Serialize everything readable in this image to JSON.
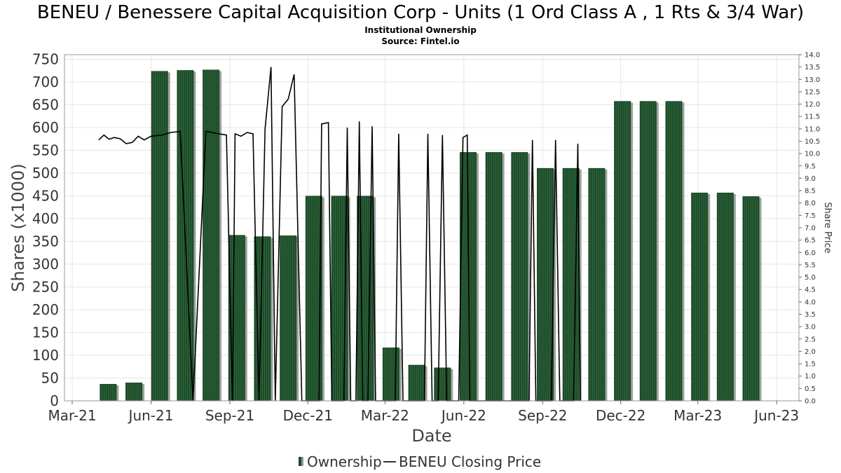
{
  "chart_data": {
    "type": "bar",
    "title": "BENEU / Benessere Capital Acquisition Corp - Units (1 Ord Class A , 1 Rts & 3/4 War)",
    "subtitle_lines": [
      "Institutional Ownership",
      "Source: Fintel.io"
    ],
    "xlabel": "Date",
    "ylabel": "Shares (x1000)",
    "y2label": "Share Price",
    "ylim": [
      0,
      760
    ],
    "y2lim": [
      0,
      14.0
    ],
    "yticks": [
      "0",
      "50",
      "100",
      "150",
      "200",
      "250",
      "300",
      "350",
      "400",
      "450",
      "500",
      "550",
      "600",
      "650",
      "700",
      "750"
    ],
    "y2ticks": [
      "0.0",
      "0.5",
      "1.0",
      "1.5",
      "2.0",
      "2.5",
      "3.0",
      "3.5",
      "4.0",
      "4.5",
      "5.0",
      "5.5",
      "6.0",
      "6.5",
      "7.0",
      "7.5",
      "8.0",
      "8.5",
      "9.0",
      "9.5",
      "10.0",
      "10.5",
      "11.0",
      "11.5",
      "12.0",
      "12.5",
      "13.0",
      "13.5",
      "14.0"
    ],
    "xticks": [
      {
        "label": "Mar-21",
        "date": "2021-03-01"
      },
      {
        "label": "Jun-21",
        "date": "2021-06-01"
      },
      {
        "label": "Sep-21",
        "date": "2021-09-01"
      },
      {
        "label": "Dec-21",
        "date": "2021-12-01"
      },
      {
        "label": "Mar-22",
        "date": "2022-03-01"
      },
      {
        "label": "Jun-22",
        "date": "2022-06-01"
      },
      {
        "label": "Sep-22",
        "date": "2022-09-01"
      },
      {
        "label": "Dec-22",
        "date": "2022-12-01"
      },
      {
        "label": "Mar-23",
        "date": "2023-03-01"
      },
      {
        "label": "Jun-23",
        "date": "2023-06-01"
      }
    ],
    "xrange": [
      "2021-02-20",
      "2023-06-27"
    ],
    "grid": true,
    "legend_position": "bottom",
    "series": [
      {
        "name": "Ownership",
        "kind": "bar",
        "color": "#1f4a2a",
        "points": [
          {
            "date": "2021-04-12",
            "value": 37
          },
          {
            "date": "2021-05-12",
            "value": 40
          },
          {
            "date": "2021-06-11",
            "value": 724
          },
          {
            "date": "2021-07-11",
            "value": 726
          },
          {
            "date": "2021-08-10",
            "value": 727
          },
          {
            "date": "2021-09-09",
            "value": 364
          },
          {
            "date": "2021-10-09",
            "value": 361
          },
          {
            "date": "2021-11-08",
            "value": 363
          },
          {
            "date": "2021-12-08",
            "value": 450
          },
          {
            "date": "2022-01-07",
            "value": 450
          },
          {
            "date": "2022-02-06",
            "value": 450
          },
          {
            "date": "2022-03-08",
            "value": 117
          },
          {
            "date": "2022-04-07",
            "value": 79
          },
          {
            "date": "2022-05-07",
            "value": 73
          },
          {
            "date": "2022-06-06",
            "value": 546
          },
          {
            "date": "2022-07-06",
            "value": 546
          },
          {
            "date": "2022-08-05",
            "value": 546
          },
          {
            "date": "2022-09-04",
            "value": 511
          },
          {
            "date": "2022-10-04",
            "value": 511
          },
          {
            "date": "2022-11-03",
            "value": 511
          },
          {
            "date": "2022-12-03",
            "value": 658
          },
          {
            "date": "2023-01-02",
            "value": 658
          },
          {
            "date": "2023-02-01",
            "value": 658
          },
          {
            "date": "2023-03-03",
            "value": 457
          },
          {
            "date": "2023-04-02",
            "value": 457
          },
          {
            "date": "2023-05-02",
            "value": 449
          }
        ]
      },
      {
        "name": "BENEU Closing Price",
        "kind": "line",
        "axis": "right",
        "color": "#000000",
        "points": [
          {
            "date": "2021-04-01",
            "value": 10.55
          },
          {
            "date": "2021-04-07",
            "value": 10.75
          },
          {
            "date": "2021-04-13",
            "value": 10.58
          },
          {
            "date": "2021-04-19",
            "value": 10.65
          },
          {
            "date": "2021-04-26",
            "value": 10.6
          },
          {
            "date": "2021-05-03",
            "value": 10.4
          },
          {
            "date": "2021-05-10",
            "value": 10.45
          },
          {
            "date": "2021-05-17",
            "value": 10.7
          },
          {
            "date": "2021-05-24",
            "value": 10.55
          },
          {
            "date": "2021-06-01",
            "value": 10.7
          },
          {
            "date": "2021-06-14",
            "value": 10.75
          },
          {
            "date": "2021-06-24",
            "value": 10.85
          },
          {
            "date": "2021-07-05",
            "value": 10.9
          },
          {
            "date": "2021-07-20",
            "value": 0.0
          },
          {
            "date": "2021-08-04",
            "value": 10.9
          },
          {
            "date": "2021-08-19",
            "value": 10.8
          },
          {
            "date": "2021-08-28",
            "value": 10.75
          },
          {
            "date": "2021-09-04",
            "value": 0.0
          },
          {
            "date": "2021-09-07",
            "value": 10.8
          },
          {
            "date": "2021-09-14",
            "value": 10.7
          },
          {
            "date": "2021-09-21",
            "value": 10.85
          },
          {
            "date": "2021-09-28",
            "value": 10.8
          },
          {
            "date": "2021-10-05",
            "value": 0.0
          },
          {
            "date": "2021-10-12",
            "value": 11.0
          },
          {
            "date": "2021-10-19",
            "value": 13.5
          },
          {
            "date": "2021-10-24",
            "value": 0.0
          },
          {
            "date": "2021-11-01",
            "value": 11.9
          },
          {
            "date": "2021-11-08",
            "value": 12.2
          },
          {
            "date": "2021-11-15",
            "value": 13.2
          },
          {
            "date": "2021-11-24",
            "value": 0.0
          },
          {
            "date": "2021-12-14",
            "value": 0.0
          },
          {
            "date": "2021-12-17",
            "value": 11.2
          },
          {
            "date": "2021-12-25",
            "value": 11.25
          },
          {
            "date": "2021-12-29",
            "value": 0.0
          },
          {
            "date": "2022-01-12",
            "value": 0.0
          },
          {
            "date": "2022-01-16",
            "value": 11.05
          },
          {
            "date": "2022-01-20",
            "value": 0.0
          },
          {
            "date": "2022-01-26",
            "value": 0.0
          },
          {
            "date": "2022-01-30",
            "value": 11.3
          },
          {
            "date": "2022-02-03",
            "value": 0.0
          },
          {
            "date": "2022-02-09",
            "value": 0.0
          },
          {
            "date": "2022-02-14",
            "value": 11.1
          },
          {
            "date": "2022-02-18",
            "value": 0.0
          },
          {
            "date": "2022-03-13",
            "value": 0.0
          },
          {
            "date": "2022-03-17",
            "value": 10.8
          },
          {
            "date": "2022-03-22",
            "value": 0.0
          },
          {
            "date": "2022-04-16",
            "value": 0.0
          },
          {
            "date": "2022-04-20",
            "value": 10.8
          },
          {
            "date": "2022-04-25",
            "value": 0.0
          },
          {
            "date": "2022-05-02",
            "value": 0.0
          },
          {
            "date": "2022-05-07",
            "value": 10.75
          },
          {
            "date": "2022-05-12",
            "value": 0.0
          },
          {
            "date": "2022-05-26",
            "value": 0.0
          },
          {
            "date": "2022-05-31",
            "value": 10.65
          },
          {
            "date": "2022-06-05",
            "value": 10.75
          },
          {
            "date": "2022-06-08",
            "value": 0.0
          },
          {
            "date": "2022-08-16",
            "value": 0.0
          },
          {
            "date": "2022-08-20",
            "value": 10.55
          },
          {
            "date": "2022-08-24",
            "value": 0.0
          },
          {
            "date": "2022-09-11",
            "value": 0.0
          },
          {
            "date": "2022-09-16",
            "value": 10.55
          },
          {
            "date": "2022-09-21",
            "value": 0.0
          },
          {
            "date": "2022-10-07",
            "value": 0.0
          },
          {
            "date": "2022-10-12",
            "value": 10.4
          },
          {
            "date": "2022-10-15",
            "value": 0.0
          }
        ]
      }
    ]
  },
  "legend": {
    "ownership_label": "Ownership",
    "price_label": "BENEU Closing Price"
  }
}
